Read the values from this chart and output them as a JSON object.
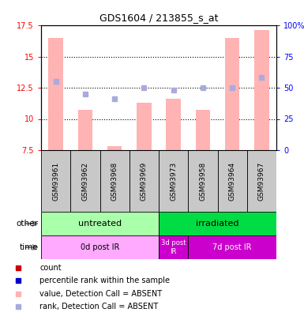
{
  "title": "GDS1604 / 213855_s_at",
  "samples": [
    "GSM93961",
    "GSM93962",
    "GSM93968",
    "GSM93969",
    "GSM93973",
    "GSM93958",
    "GSM93964",
    "GSM93967"
  ],
  "bar_values": [
    16.5,
    10.7,
    7.8,
    11.3,
    11.6,
    10.7,
    16.5,
    17.1
  ],
  "bar_absent": [
    true,
    true,
    true,
    true,
    true,
    true,
    true,
    true
  ],
  "rank_values": [
    13.0,
    12.0,
    11.6,
    12.5,
    12.3,
    12.5,
    12.5,
    13.3
  ],
  "rank_absent": [
    true,
    true,
    true,
    true,
    true,
    true,
    true,
    true
  ],
  "bar_color_absent": "#FFB3B3",
  "rank_color_absent": "#AAAADD",
  "ylim_left": [
    7.5,
    17.5
  ],
  "yticks_left": [
    7.5,
    10.0,
    12.5,
    15.0,
    17.5
  ],
  "ytick_labels_left": [
    "7.5",
    "10",
    "12.5",
    "15",
    "17.5"
  ],
  "ytick_labels_right": [
    "0",
    "25",
    "50",
    "75",
    "100%"
  ],
  "other_groups": [
    {
      "label": "untreated",
      "start": 0,
      "end": 4,
      "color": "#AAFFAA"
    },
    {
      "label": "irradiated",
      "start": 4,
      "end": 8,
      "color": "#00DD44"
    }
  ],
  "time_groups": [
    {
      "label": "0d post IR",
      "start": 0,
      "end": 4,
      "color": "#FFAAFF"
    },
    {
      "label": "3d post\nIR",
      "start": 4,
      "end": 5,
      "color": "#CC00CC"
    },
    {
      "label": "7d post IR",
      "start": 5,
      "end": 8,
      "color": "#CC00CC"
    }
  ],
  "legend_items": [
    {
      "label": "count",
      "color": "#CC0000",
      "marker": "s"
    },
    {
      "label": "percentile rank within the sample",
      "color": "#0000CC",
      "marker": "s"
    },
    {
      "label": "value, Detection Call = ABSENT",
      "color": "#FFB3B3",
      "marker": "s"
    },
    {
      "label": "rank, Detection Call = ABSENT",
      "color": "#AAAADD",
      "marker": "s"
    }
  ],
  "other_label": "other",
  "time_label": "time",
  "dotted_lines": [
    10.0,
    12.5,
    15.0
  ],
  "sample_box_color": "#C8C8C8",
  "background_color": "#FFFFFF"
}
